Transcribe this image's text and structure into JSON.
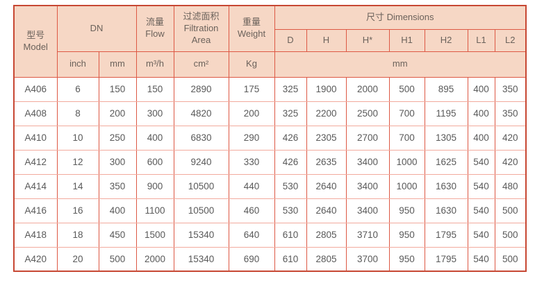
{
  "table": {
    "header": {
      "model": "型号\nModel",
      "dn": "DN",
      "flow": "流量\nFlow",
      "filtration": "过滤面积\nFiltration\nArea",
      "weight": "重量\nWeight",
      "dimensions": "尺寸 Dimensions",
      "dim_cols": [
        "D",
        "H",
        "H*",
        "H1",
        "H2",
        "L1",
        "L2"
      ],
      "units": [
        "inch",
        "mm",
        "m³/h",
        "cm²",
        "Kg",
        "mm"
      ]
    },
    "rows": [
      [
        "A406",
        "6",
        "150",
        "150",
        "2890",
        "175",
        "325",
        "1900",
        "2000",
        "500",
        "895",
        "400",
        "350"
      ],
      [
        "A408",
        "8",
        "200",
        "300",
        "4820",
        "200",
        "325",
        "2200",
        "2500",
        "700",
        "1195",
        "400",
        "350"
      ],
      [
        "A410",
        "10",
        "250",
        "400",
        "6830",
        "290",
        "426",
        "2305",
        "2700",
        "700",
        "1305",
        "400",
        "420"
      ],
      [
        "A412",
        "12",
        "300",
        "600",
        "9240",
        "330",
        "426",
        "2635",
        "3400",
        "1000",
        "1625",
        "540",
        "420"
      ],
      [
        "A414",
        "14",
        "350",
        "900",
        "10500",
        "440",
        "530",
        "2640",
        "3400",
        "1000",
        "1630",
        "540",
        "480"
      ],
      [
        "A416",
        "16",
        "400",
        "1100",
        "10500",
        "460",
        "530",
        "2640",
        "3400",
        "950",
        "1630",
        "540",
        "500"
      ],
      [
        "A418",
        "18",
        "450",
        "1500",
        "15340",
        "640",
        "610",
        "2805",
        "3710",
        "950",
        "1795",
        "540",
        "500"
      ],
      [
        "A420",
        "20",
        "500",
        "2000",
        "15340",
        "690",
        "610",
        "2805",
        "3700",
        "950",
        "1795",
        "540",
        "500"
      ]
    ],
    "colors": {
      "header_bg": "#f6d7c5",
      "outer_border": "#c74733",
      "grid_strong": "#dd5844",
      "grid_light": "#f2aa9d",
      "header_text": "#6b625b",
      "cell_text": "#595959"
    }
  }
}
